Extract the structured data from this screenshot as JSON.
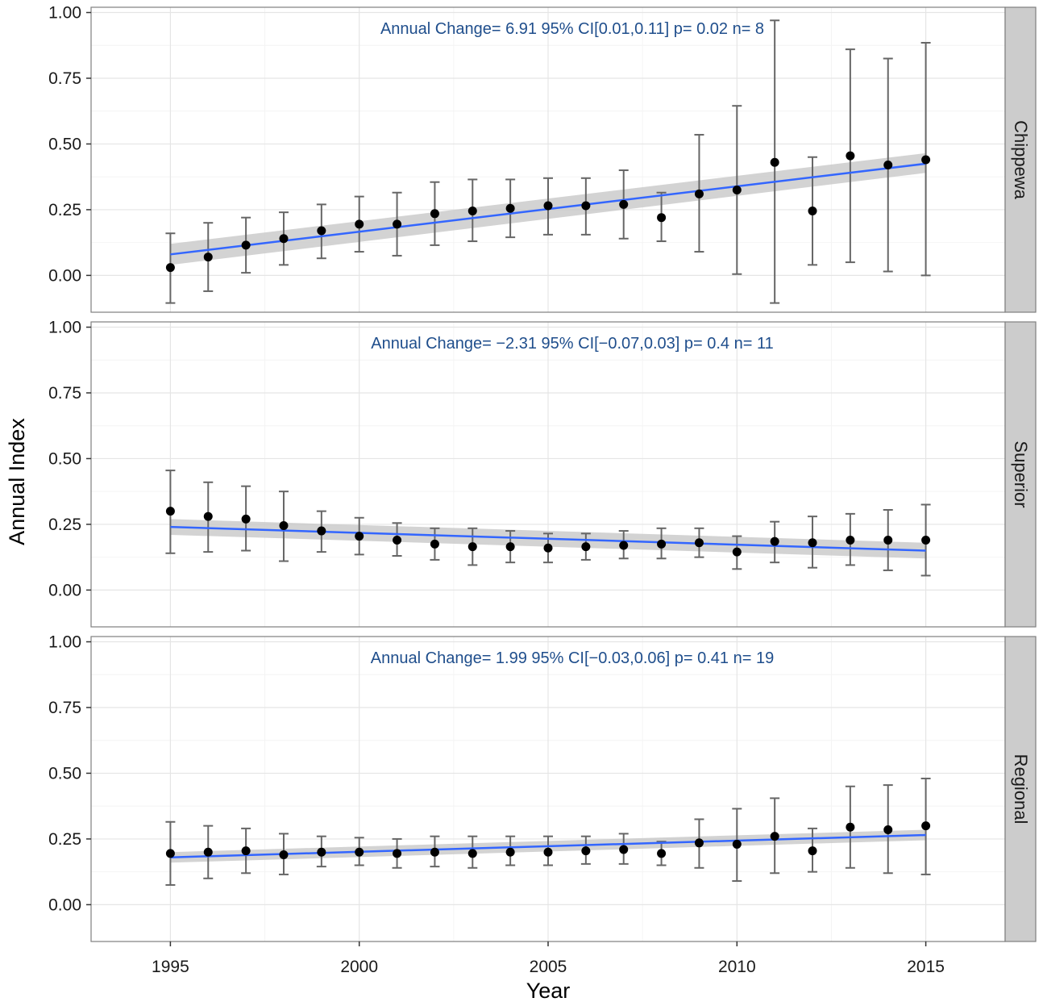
{
  "chart_data": {
    "type": "scatter",
    "title": "",
    "xlabel": "Year",
    "ylabel": "Annual Index",
    "xlim": [
      1992.9,
      2017.1
    ],
    "ylim": [
      -0.14,
      1.02
    ],
    "x_ticks": [
      1995,
      2000,
      2005,
      2010,
      2015
    ],
    "y_ticks": [
      0.0,
      0.25,
      0.5,
      0.75,
      1.0
    ],
    "y_tick_labels": [
      "0.00",
      "0.25",
      "0.50",
      "0.75",
      "1.00"
    ],
    "grid": true,
    "colors": {
      "points": "#000000",
      "errorbar": "#666666",
      "trend": "#3366ff",
      "ribbon": "#c8c8c8",
      "annotation": "#1f4e8c",
      "strip": "#cccccc"
    },
    "facets": [
      {
        "label": "Chippewa",
        "annotation": "Annual Change= 6.91  95% CI[0.01,0.11]  p= 0.02  n= 8",
        "x": [
          1995,
          1996,
          1997,
          1998,
          1999,
          2000,
          2001,
          2002,
          2003,
          2004,
          2005,
          2006,
          2007,
          2008,
          2009,
          2010,
          2011,
          2012,
          2013,
          2014,
          2015
        ],
        "y": [
          0.03,
          0.07,
          0.115,
          0.14,
          0.17,
          0.195,
          0.195,
          0.235,
          0.245,
          0.255,
          0.265,
          0.265,
          0.27,
          0.22,
          0.31,
          0.325,
          0.43,
          0.245,
          0.455,
          0.42,
          0.44
        ],
        "lower": [
          -0.105,
          -0.06,
          0.01,
          0.04,
          0.065,
          0.09,
          0.075,
          0.115,
          0.13,
          0.145,
          0.155,
          0.155,
          0.14,
          0.13,
          0.09,
          0.005,
          -0.105,
          0.04,
          0.05,
          0.015,
          0.0
        ],
        "upper": [
          0.16,
          0.2,
          0.22,
          0.24,
          0.27,
          0.3,
          0.315,
          0.355,
          0.365,
          0.365,
          0.37,
          0.37,
          0.4,
          0.315,
          0.535,
          0.645,
          0.97,
          0.45,
          0.86,
          0.825,
          0.885
        ],
        "trend": {
          "x": [
            1995,
            2015
          ],
          "y": [
            0.08,
            0.425
          ],
          "band_low": [
            0.04,
            0.39
          ],
          "band_high": [
            0.12,
            0.465
          ]
        }
      },
      {
        "label": "Superior",
        "annotation": "Annual Change= −2.31  95% CI[−0.07,0.03]  p= 0.4  n= 11",
        "x": [
          1995,
          1996,
          1997,
          1998,
          1999,
          2000,
          2001,
          2002,
          2003,
          2004,
          2005,
          2006,
          2007,
          2008,
          2009,
          2010,
          2011,
          2012,
          2013,
          2014,
          2015
        ],
        "y": [
          0.3,
          0.28,
          0.27,
          0.245,
          0.225,
          0.205,
          0.19,
          0.175,
          0.165,
          0.165,
          0.16,
          0.165,
          0.17,
          0.175,
          0.18,
          0.145,
          0.185,
          0.18,
          0.19,
          0.19,
          0.19
        ],
        "lower": [
          0.14,
          0.145,
          0.15,
          0.11,
          0.145,
          0.135,
          0.13,
          0.115,
          0.095,
          0.105,
          0.105,
          0.115,
          0.12,
          0.12,
          0.125,
          0.08,
          0.105,
          0.085,
          0.095,
          0.075,
          0.055
        ],
        "upper": [
          0.455,
          0.41,
          0.395,
          0.375,
          0.3,
          0.275,
          0.255,
          0.235,
          0.235,
          0.225,
          0.215,
          0.215,
          0.225,
          0.235,
          0.235,
          0.205,
          0.26,
          0.28,
          0.29,
          0.305,
          0.325
        ],
        "trend": {
          "x": [
            1995,
            2015
          ],
          "y": [
            0.24,
            0.15
          ],
          "band_low": [
            0.21,
            0.12
          ],
          "band_high": [
            0.27,
            0.18
          ]
        }
      },
      {
        "label": "Regional",
        "annotation": "Annual Change= 1.99  95% CI[−0.03,0.06]  p= 0.41  n= 19",
        "x": [
          1995,
          1996,
          1997,
          1998,
          1999,
          2000,
          2001,
          2002,
          2003,
          2004,
          2005,
          2006,
          2007,
          2008,
          2009,
          2010,
          2011,
          2012,
          2013,
          2014,
          2015
        ],
        "y": [
          0.195,
          0.2,
          0.205,
          0.19,
          0.2,
          0.2,
          0.195,
          0.2,
          0.195,
          0.2,
          0.2,
          0.205,
          0.21,
          0.195,
          0.235,
          0.23,
          0.26,
          0.205,
          0.295,
          0.285,
          0.3
        ],
        "lower": [
          0.075,
          0.1,
          0.12,
          0.115,
          0.145,
          0.15,
          0.14,
          0.145,
          0.14,
          0.15,
          0.15,
          0.155,
          0.155,
          0.15,
          0.14,
          0.09,
          0.12,
          0.125,
          0.14,
          0.12,
          0.115
        ],
        "upper": [
          0.315,
          0.3,
          0.29,
          0.27,
          0.26,
          0.255,
          0.25,
          0.26,
          0.26,
          0.26,
          0.26,
          0.26,
          0.27,
          0.24,
          0.325,
          0.365,
          0.405,
          0.29,
          0.45,
          0.455,
          0.48
        ],
        "trend": {
          "x": [
            1995,
            2015
          ],
          "y": [
            0.18,
            0.265
          ],
          "band_low": [
            0.16,
            0.245
          ],
          "band_high": [
            0.2,
            0.285
          ]
        }
      }
    ]
  }
}
